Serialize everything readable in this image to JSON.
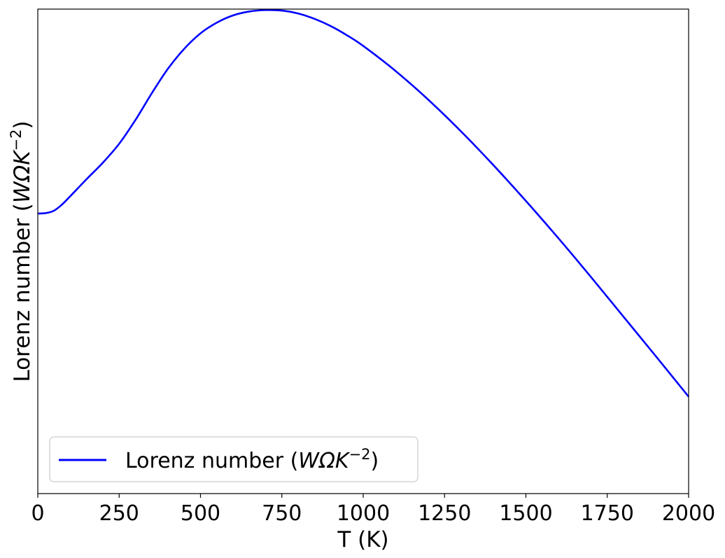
{
  "chart_data": {
    "type": "line",
    "title": "",
    "xlabel": "T (K)",
    "ylabel_text": "Lorenz number (",
    "ylabel_unit_base": "WΩK",
    "ylabel_unit_exp": "−2",
    "ylabel_close": ")",
    "xlim": [
      0,
      2000
    ],
    "ylim": [
      0,
      1
    ],
    "x_ticks": [
      0,
      250,
      500,
      750,
      1000,
      1250,
      1500,
      1750,
      2000
    ],
    "y_ticks_shown": false,
    "grid": false,
    "legend_position": "lower-left",
    "series": [
      {
        "name": "Lorenz number (WΩK−2)",
        "legend_text": "Lorenz number (",
        "legend_unit_base": "WΩK",
        "legend_unit_exp": "−2",
        "legend_close": ")",
        "color": "#0000ff",
        "x": [
          0,
          25,
          50,
          75,
          100,
          150,
          200,
          250,
          300,
          350,
          400,
          450,
          500,
          550,
          600,
          650,
          700,
          750,
          800,
          850,
          900,
          950,
          1000,
          1100,
          1200,
          1300,
          1400,
          1500,
          1600,
          1700,
          1800,
          1900,
          2000
        ],
        "y": [
          0.578,
          0.579,
          0.584,
          0.597,
          0.614,
          0.649,
          0.683,
          0.722,
          0.771,
          0.826,
          0.877,
          0.918,
          0.95,
          0.972,
          0.987,
          0.995,
          0.998,
          0.997,
          0.991,
          0.98,
          0.965,
          0.946,
          0.924,
          0.872,
          0.813,
          0.748,
          0.678,
          0.604,
          0.527,
          0.447,
          0.365,
          0.283,
          0.2
        ]
      }
    ]
  }
}
